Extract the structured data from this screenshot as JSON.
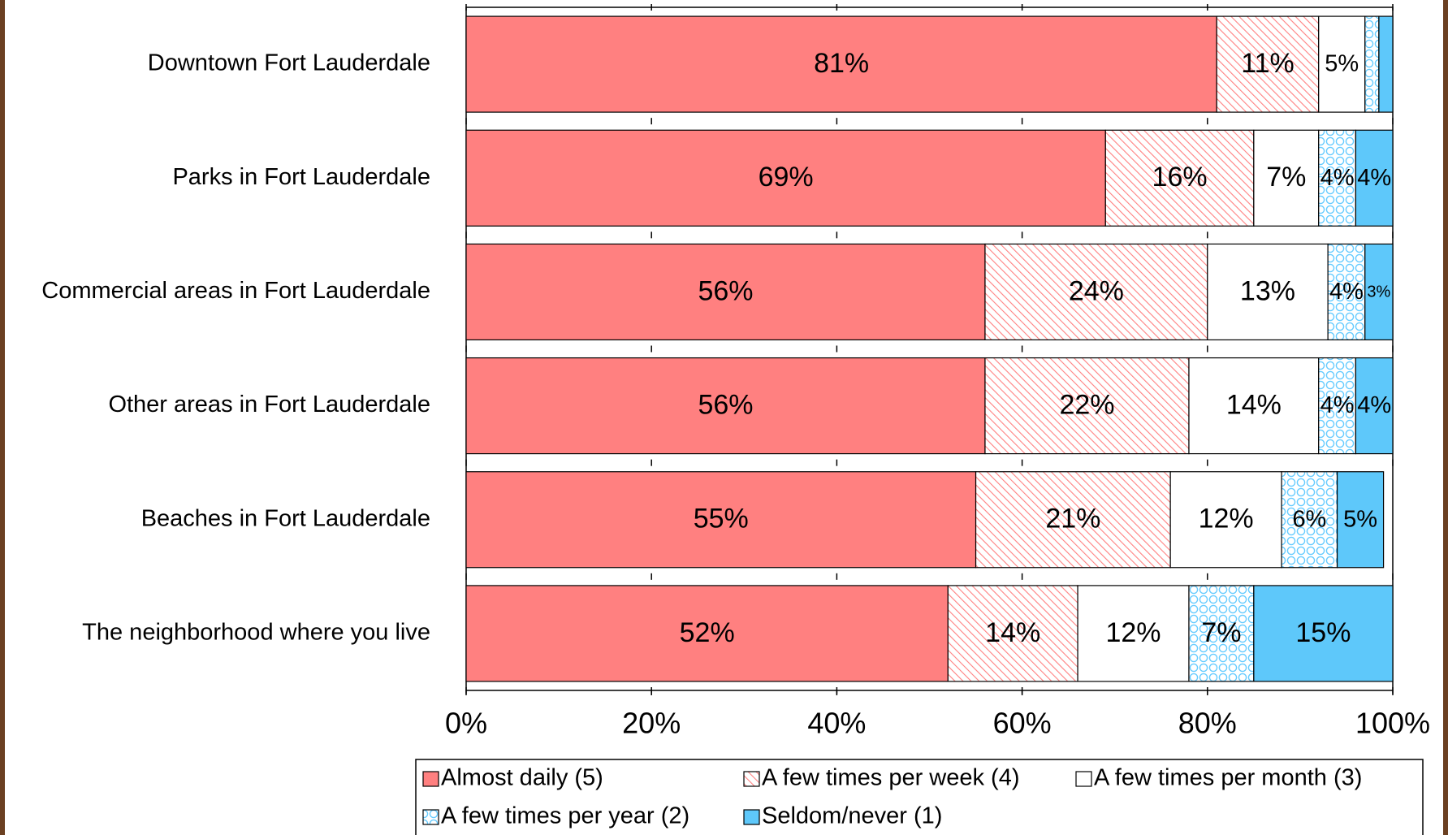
{
  "chart_data": {
    "type": "stacked-barh",
    "categories": [
      "Downtown Fort Lauderdale",
      "Parks in Fort Lauderdale",
      "Commercial areas in Fort Lauderdale",
      "Other areas in Fort Lauderdale",
      "Beaches in Fort Lauderdale",
      "The neighborhood where you live"
    ],
    "series": [
      {
        "name": "Almost daily (5)",
        "color": "#ff8080",
        "pattern": "solid",
        "values": [
          81,
          69,
          56,
          56,
          55,
          52
        ],
        "value_labels": [
          "81%",
          "69%",
          "56%",
          "56%",
          "55%",
          "52%"
        ]
      },
      {
        "name": "A few times per week (4)",
        "color": "#ff8080",
        "pattern": "hatch",
        "values": [
          11,
          16,
          24,
          22,
          21,
          14
        ],
        "value_labels": [
          "11%",
          "16%",
          "24%",
          "22%",
          "21%",
          "14%"
        ]
      },
      {
        "name": "A few times per month (3)",
        "color": "#ffffff",
        "pattern": "solid",
        "values": [
          5,
          7,
          13,
          14,
          12,
          12
        ],
        "value_labels": [
          "5%",
          "7%",
          "13%",
          "14%",
          "12%",
          "12%"
        ]
      },
      {
        "name": "A few times per year (2)",
        "color": "#66ccff",
        "pattern": "circles",
        "values": [
          1.5,
          4,
          4,
          4,
          6,
          7
        ],
        "value_labels": [
          null,
          "4%",
          "4%",
          "4%",
          "6%",
          "7%"
        ]
      },
      {
        "name": "Seldom/never (1)",
        "color": "#5ec8fa",
        "pattern": "solid",
        "values": [
          1.5,
          4,
          3,
          4,
          5,
          15
        ],
        "value_labels": [
          null,
          "4%",
          "3%",
          "4%",
          "5%",
          "15%"
        ]
      }
    ],
    "xlim": [
      0,
      100
    ],
    "xticks": [
      {
        "value": 0,
        "label": "0%"
      },
      {
        "value": 20,
        "label": "20%"
      },
      {
        "value": 40,
        "label": "40%"
      },
      {
        "value": 60,
        "label": "60%"
      },
      {
        "value": 80,
        "label": "80%"
      },
      {
        "value": 100,
        "label": "100%"
      }
    ],
    "legend": "bottom"
  }
}
